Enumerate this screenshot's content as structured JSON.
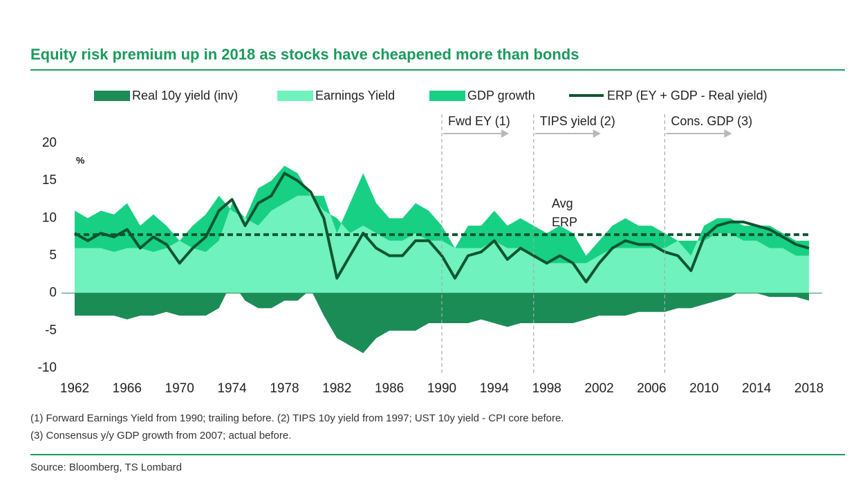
{
  "chart_data": {
    "type": "area",
    "title": "Equity risk premium up in 2018 as stocks have cheapened more than bonds",
    "y_unit": "%",
    "x": [
      1962,
      1963,
      1964,
      1965,
      1966,
      1967,
      1968,
      1969,
      1970,
      1971,
      1972,
      1973,
      1974,
      1975,
      1976,
      1977,
      1978,
      1979,
      1980,
      1981,
      1982,
      1983,
      1984,
      1985,
      1986,
      1987,
      1988,
      1989,
      1990,
      1991,
      1992,
      1993,
      1994,
      1995,
      1996,
      1997,
      1998,
      1999,
      2000,
      2001,
      2002,
      2003,
      2004,
      2005,
      2006,
      2007,
      2008,
      2009,
      2010,
      2011,
      2012,
      2013,
      2014,
      2015,
      2016,
      2017,
      2018
    ],
    "series": [
      {
        "name": "Real 10y yield (inv)",
        "kind": "area",
        "color": "#1b8c56",
        "values": [
          -3,
          -3,
          -3,
          -3,
          -3.5,
          -3,
          -3,
          -2.5,
          -3,
          -3,
          -3,
          -2,
          1.5,
          -1,
          -2,
          -2,
          -1,
          -1,
          0.5,
          -3,
          -6,
          -7,
          -8,
          -6,
          -5,
          -5,
          -5,
          -4,
          -4,
          -4,
          -4,
          -3.5,
          -4,
          -4.5,
          -4,
          -4,
          -4,
          -4,
          -4,
          -3.5,
          -3,
          -3,
          -3,
          -2.5,
          -2.5,
          -2.5,
          -2,
          -2,
          -1.5,
          -1,
          -0.5,
          0.5,
          0,
          -0.5,
          -0.5,
          -0.5,
          -1
        ]
      },
      {
        "name": "Earnings Yield",
        "kind": "area",
        "color": "#6ff2bd",
        "values": [
          6,
          6,
          6,
          5.5,
          6,
          6,
          5.5,
          6,
          7,
          6,
          5.5,
          7,
          12,
          10,
          9,
          11,
          12,
          13,
          13,
          11,
          10,
          8,
          9,
          8,
          7,
          7,
          8,
          7,
          7,
          6,
          6,
          6,
          7,
          6,
          6,
          5,
          4,
          4,
          4,
          4,
          5,
          6,
          6,
          6,
          6,
          6,
          7,
          7,
          7,
          8,
          8,
          7,
          7,
          6,
          6,
          5,
          5
        ]
      },
      {
        "name": "GDP growth",
        "kind": "stacked-area",
        "color": "#17d083",
        "values": [
          5,
          4,
          5,
          5,
          6,
          3,
          5,
          3,
          0,
          3,
          5,
          6,
          -1,
          0,
          5,
          4,
          5,
          3,
          0,
          2,
          -2,
          4,
          7,
          4,
          3,
          3,
          4,
          4,
          2,
          0,
          3,
          3,
          4,
          3,
          4,
          4,
          4,
          5,
          4,
          1,
          2,
          3,
          4,
          3,
          3,
          2,
          0,
          -2,
          2,
          2,
          2,
          2,
          2,
          3,
          2,
          2,
          2
        ]
      },
      {
        "name": "ERP (EY + GDP - Real yield)",
        "kind": "line",
        "color": "#0d5530",
        "values": [
          8,
          7,
          8,
          7.5,
          8.5,
          6,
          7.5,
          6.5,
          4,
          6,
          7.5,
          11,
          12.5,
          9,
          12,
          13,
          16,
          15,
          13.5,
          10,
          2,
          5,
          8,
          6,
          5,
          5,
          7,
          7,
          5,
          2,
          5,
          5.5,
          7,
          4.5,
          6,
          5,
          4,
          5,
          4,
          1.5,
          4,
          6,
          7,
          6.5,
          6.5,
          5.5,
          5,
          3,
          7.5,
          9,
          9.5,
          9.5,
          9,
          8.5,
          7.5,
          6.5,
          6
        ]
      }
    ],
    "average": {
      "value": 7.8,
      "label": [
        "Avg",
        "ERP"
      ]
    },
    "regime_markers": [
      {
        "x": 1990,
        "label": "Fwd EY (1)"
      },
      {
        "x": 1997,
        "label": "TIPS yield (2)"
      },
      {
        "x": 2007,
        "label": "Cons. GDP (3)"
      }
    ],
    "xlim": [
      1961,
      2019
    ],
    "ylim": [
      -10,
      20
    ],
    "xticks": [
      1962,
      1966,
      1970,
      1974,
      1978,
      1982,
      1986,
      1990,
      1994,
      1998,
      2002,
      2006,
      2010,
      2014,
      2018
    ],
    "yticks": [
      -10,
      -5,
      0,
      5,
      10,
      15,
      20
    ],
    "footnotes": [
      "(1) Forward Earnings Yield from 1990; trailing before.  (2) TIPS 10y yield from 1997; UST 10y yield - CPI core before.",
      "(3) Consensus y/y GDP growth from 2007; actual before."
    ],
    "source": "Source: Bloomberg, TS Lombard"
  }
}
